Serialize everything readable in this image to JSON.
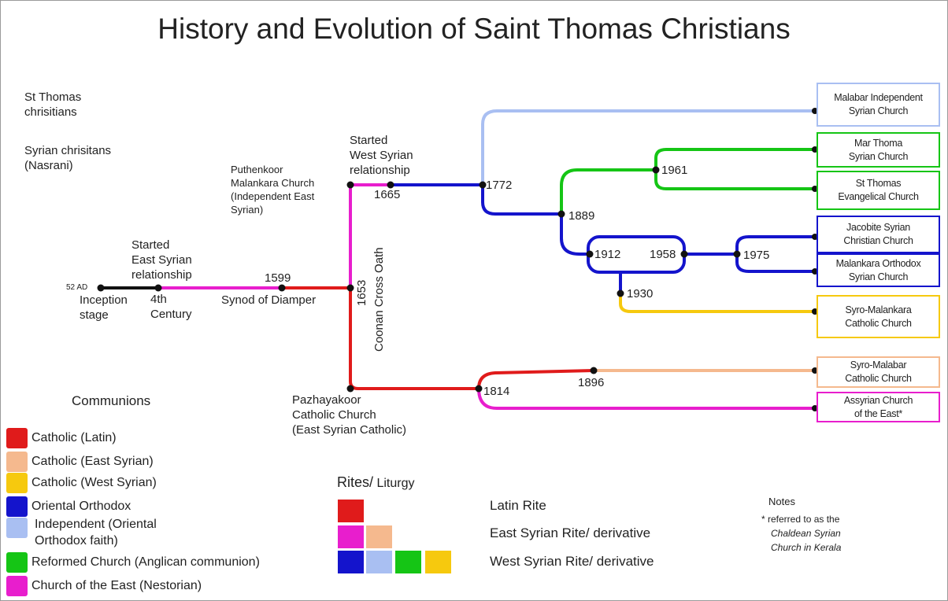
{
  "title": "History and Evolution of Saint Thomas Christians",
  "intro": {
    "st_thomas": "St Thomas\nchrisitians",
    "syrian": "Syrian chrisitans\n(Nasrani)"
  },
  "timeline": {
    "ad52": "52 AD",
    "inception": "Inception\nstage",
    "fourth": "4th\nCentury",
    "started_east": "Started\nEast Syrian\nrelationship",
    "y1599": "1599",
    "synod": "Synod of Diamper",
    "y1653": "1653",
    "coonan": "Coonan Cross Oath",
    "puthenkoor": "Puthenkoor\nMalankara Church\n(Independent East\nSyrian)",
    "started_west": "Started\nWest Syrian\nrelationship",
    "y1665": "1665",
    "y1772": "1772",
    "y1889": "1889",
    "y1961": "1961",
    "y1912": "1912",
    "y1958": "1958",
    "y1975": "1975",
    "y1930": "1930",
    "pazhayakoor": "Pazhayakoor\nCatholic Church\n(East Syrian Catholic)",
    "y1814": "1814",
    "y1896": "1896"
  },
  "churches": {
    "malabar_independent": "Malabar Independent\nSyrian Church",
    "mar_thoma": "Mar Thoma\nSyrian Church",
    "st_thomas_evangelical": "St Thomas\nEvangelical Church",
    "jacobite": "Jacobite Syrian\nChristian Church",
    "malankara_orthodox": "Malankara Orthodox\nSyrian Church",
    "syro_malankara": "Syro-Malankara\nCatholic Church",
    "syro_malabar": "Syro-Malabar\nCatholic Church",
    "assyrian": "Assyrian Church\nof the East*"
  },
  "communions": {
    "heading": "Communions",
    "items": [
      {
        "label": "Catholic (Latin)",
        "color": "#e01b1b"
      },
      {
        "label": "Catholic (East Syrian)",
        "color": "#f5b98e"
      },
      {
        "label": "Catholic (West Syrian)",
        "color": "#f6c90e"
      },
      {
        "label": "Oriental Orthodox",
        "color": "#1414cc"
      },
      {
        "label": "Independent (Oriental\nOrthodox faith)",
        "color": "#a9bff2"
      },
      {
        "label": "Reformed Church (Anglican communion)",
        "color": "#15c515"
      },
      {
        "label": "Church of the East (Nestorian)",
        "color": "#e81ecd"
      }
    ]
  },
  "rites": {
    "heading_main": "Rites/",
    "heading_sub": " Liturgy",
    "latin": "Latin Rite",
    "east": "East Syrian Rite/ derivative",
    "west": "West Syrian Rite/ derivative"
  },
  "notes": {
    "heading": "Notes",
    "line1": "* referred to as the",
    "line2": "Chaldean Syrian",
    "line3": "Church in Kerala"
  },
  "colors": {
    "latin": "#e01b1b",
    "east_syrian_catholic": "#f5b98e",
    "west_syrian_catholic": "#f6c90e",
    "oriental_orthodox": "#1414cc",
    "independent": "#a9bff2",
    "reformed": "#15c515",
    "church_of_east": "#e81ecd",
    "inception": "#111111"
  }
}
